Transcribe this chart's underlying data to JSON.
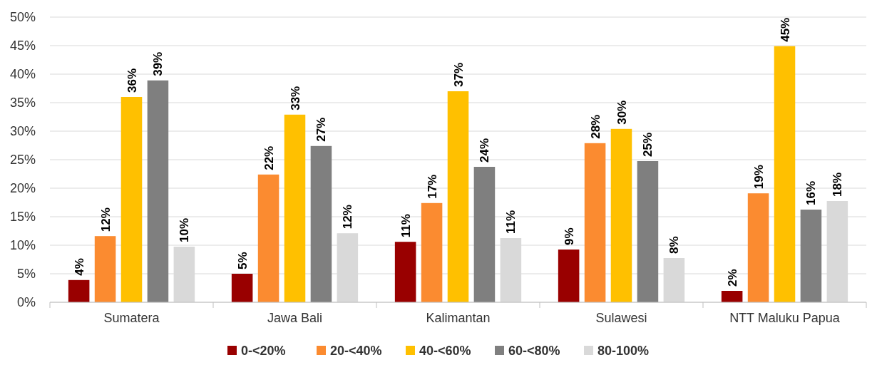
{
  "chart_data": {
    "type": "bar",
    "categories": [
      "Sumatera",
      "Jawa Bali",
      "Kalimantan",
      "Sulawesi",
      "NTT Maluku Papua"
    ],
    "series": [
      {
        "name": "0-<20%",
        "color": "#990000",
        "values": [
          3.9,
          5.0,
          10.6,
          9.25,
          2.0
        ],
        "value_labels": [
          "4%",
          "5%",
          "11%",
          "9%",
          "2%"
        ]
      },
      {
        "name": "20-<40%",
        "color": "#fb8b30",
        "values": [
          11.6,
          22.4,
          17.4,
          27.9,
          19.1
        ],
        "value_labels": [
          "12%",
          "22%",
          "17%",
          "28%",
          "19%"
        ]
      },
      {
        "name": "40-<60%",
        "color": "#ffc000",
        "values": [
          36.0,
          32.9,
          37.0,
          30.4,
          44.9
        ],
        "value_labels": [
          "36%",
          "33%",
          "37%",
          "30%",
          "45%"
        ]
      },
      {
        "name": "60-<80%",
        "color": "#7f7f7f",
        "values": [
          38.9,
          27.4,
          23.75,
          24.75,
          16.25
        ],
        "value_labels": [
          "39%",
          "27%",
          "24%",
          "25%",
          "16%"
        ]
      },
      {
        "name": "80-100%",
        "color": "#d9d9d9",
        "values": [
          9.75,
          12.1,
          11.25,
          7.75,
          17.75
        ],
        "value_labels": [
          "10%",
          "12%",
          "11%",
          "8%",
          "18%"
        ]
      }
    ],
    "ylim": [
      0,
      50
    ],
    "yticks": [
      {
        "value": 0,
        "label": "0%"
      },
      {
        "value": 5,
        "label": "5%"
      },
      {
        "value": 10,
        "label": "10%"
      },
      {
        "value": 15,
        "label": "15%"
      },
      {
        "value": 20,
        "label": "20%"
      },
      {
        "value": 25,
        "label": "25%"
      },
      {
        "value": 30,
        "label": "30%"
      },
      {
        "value": 35,
        "label": "35%"
      },
      {
        "value": 40,
        "label": "40%"
      },
      {
        "value": 45,
        "label": "45%"
      },
      {
        "value": 50,
        "label": "50%"
      }
    ],
    "grid": "y",
    "legend": "bottom"
  }
}
